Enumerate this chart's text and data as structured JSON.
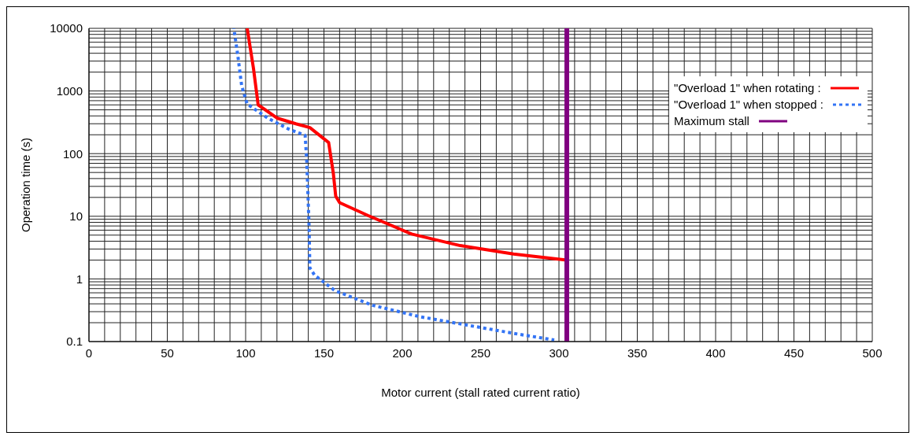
{
  "chart_data": {
    "type": "line",
    "xlabel": "Motor current (stall rated current ratio)",
    "ylabel": "Operation time (s)",
    "log": "y",
    "grid": true,
    "legend": "top right",
    "marker": "none",
    "xlim": [
      0,
      500
    ],
    "xticks": [
      0,
      {
        "value": 10,
        "label": null
      },
      {
        "value": 20,
        "label": null
      },
      {
        "value": 30,
        "label": null
      },
      {
        "value": 40,
        "label": null
      },
      50,
      {
        "value": 60,
        "label": null
      },
      {
        "value": 70,
        "label": null
      },
      {
        "value": 80,
        "label": null
      },
      {
        "value": 90,
        "label": null
      },
      100,
      {
        "value": 110,
        "label": null
      },
      {
        "value": 120,
        "label": null
      },
      {
        "value": 130,
        "label": null
      },
      {
        "value": 140,
        "label": null
      },
      150,
      {
        "value": 160,
        "label": null
      },
      {
        "value": 170,
        "label": null
      },
      {
        "value": 180,
        "label": null
      },
      {
        "value": 190,
        "label": null
      },
      200,
      {
        "value": 210,
        "label": null
      },
      {
        "value": 220,
        "label": null
      },
      {
        "value": 230,
        "label": null
      },
      {
        "value": 240,
        "label": null
      },
      250,
      {
        "value": 260,
        "label": null
      },
      {
        "value": 270,
        "label": null
      },
      {
        "value": 280,
        "label": null
      },
      {
        "value": 290,
        "label": null
      },
      300,
      {
        "value": 310,
        "label": null
      },
      {
        "value": 320,
        "label": null
      },
      {
        "value": 330,
        "label": null
      },
      {
        "value": 340,
        "label": null
      },
      350,
      {
        "value": 360,
        "label": null
      },
      {
        "value": 370,
        "label": null
      },
      {
        "value": 380,
        "label": null
      },
      {
        "value": 390,
        "label": null
      },
      400,
      {
        "value": 410,
        "label": null
      },
      {
        "value": 420,
        "label": null
      },
      {
        "value": 430,
        "label": null
      },
      {
        "value": 440,
        "label": null
      },
      450,
      {
        "value": 460,
        "label": null
      },
      {
        "value": 470,
        "label": null
      },
      {
        "value": 480,
        "label": null
      },
      {
        "value": 490,
        "label": null
      },
      500
    ],
    "ylim": [
      0.1,
      10000
    ],
    "yticks": [
      0.1,
      {
        "value": 0.2,
        "label": null
      },
      {
        "value": 0.3,
        "label": null
      },
      {
        "value": 0.4,
        "label": null
      },
      {
        "value": 0.5,
        "label": null
      },
      {
        "value": 0.6,
        "label": null
      },
      {
        "value": 0.7,
        "label": null
      },
      {
        "value": 0.8,
        "label": null
      },
      {
        "value": 0.9,
        "label": null
      },
      1,
      {
        "value": 2,
        "label": null
      },
      {
        "value": 3,
        "label": null
      },
      {
        "value": 4,
        "label": null
      },
      {
        "value": 5,
        "label": null
      },
      {
        "value": 6,
        "label": null
      },
      {
        "value": 7,
        "label": null
      },
      {
        "value": 8,
        "label": null
      },
      {
        "value": 9,
        "label": null
      },
      10,
      {
        "value": 20,
        "label": null
      },
      {
        "value": 30,
        "label": null
      },
      {
        "value": 40,
        "label": null
      },
      {
        "value": 50,
        "label": null
      },
      {
        "value": 60,
        "label": null
      },
      {
        "value": 70,
        "label": null
      },
      {
        "value": 80,
        "label": null
      },
      {
        "value": 90,
        "label": null
      },
      100,
      {
        "value": 200,
        "label": null
      },
      {
        "value": 300,
        "label": null
      },
      {
        "value": 400,
        "label": null
      },
      {
        "value": 500,
        "label": null
      },
      {
        "value": 600,
        "label": null
      },
      {
        "value": 700,
        "label": null
      },
      {
        "value": 800,
        "label": null
      },
      {
        "value": 900,
        "label": null
      },
      1000,
      {
        "value": 2000,
        "label": null
      },
      {
        "value": 3000,
        "label": null
      },
      {
        "value": 4000,
        "label": null
      },
      {
        "value": 5000,
        "label": null
      },
      {
        "value": 6000,
        "label": null
      },
      {
        "value": 7000,
        "label": null
      },
      {
        "value": 8000,
        "label": null
      },
      {
        "value": 9000,
        "label": null
      },
      10000
    ],
    "series": [
      {
        "name": "\"Overload 1\" when rotating :",
        "color": "#ff0000",
        "line_style": "solid",
        "x": [
          101,
          105,
          108,
          120,
          132,
          141,
          153,
          156,
          157.5,
          160,
          178,
          206,
          237,
          271,
          305
        ],
        "values": [
          10000,
          2300,
          600,
          370,
          300,
          260,
          150,
          48,
          21,
          16.5,
          10.3,
          5.2,
          3.4,
          2.5,
          2
        ]
      },
      {
        "name": "\"Overload 1\" when stopped :",
        "color": "#3374f5",
        "line_style": "dotted",
        "x": [
          92.5,
          95,
          97.5,
          101,
          114,
          127,
          138,
          139,
          140.5,
          141,
          144,
          157,
          181,
          211,
          243,
          275,
          297
        ],
        "values": [
          10000,
          3700,
          1200,
          620,
          370,
          250,
          195,
          78,
          7,
          1.5,
          1.15,
          0.65,
          0.38,
          0.25,
          0.18,
          0.13,
          0.106
        ]
      },
      {
        "name": "Maximum stall",
        "color": "#800080",
        "line_style": "solid",
        "x": [
          305,
          305
        ],
        "values": [
          0.1,
          10000
        ]
      }
    ]
  }
}
